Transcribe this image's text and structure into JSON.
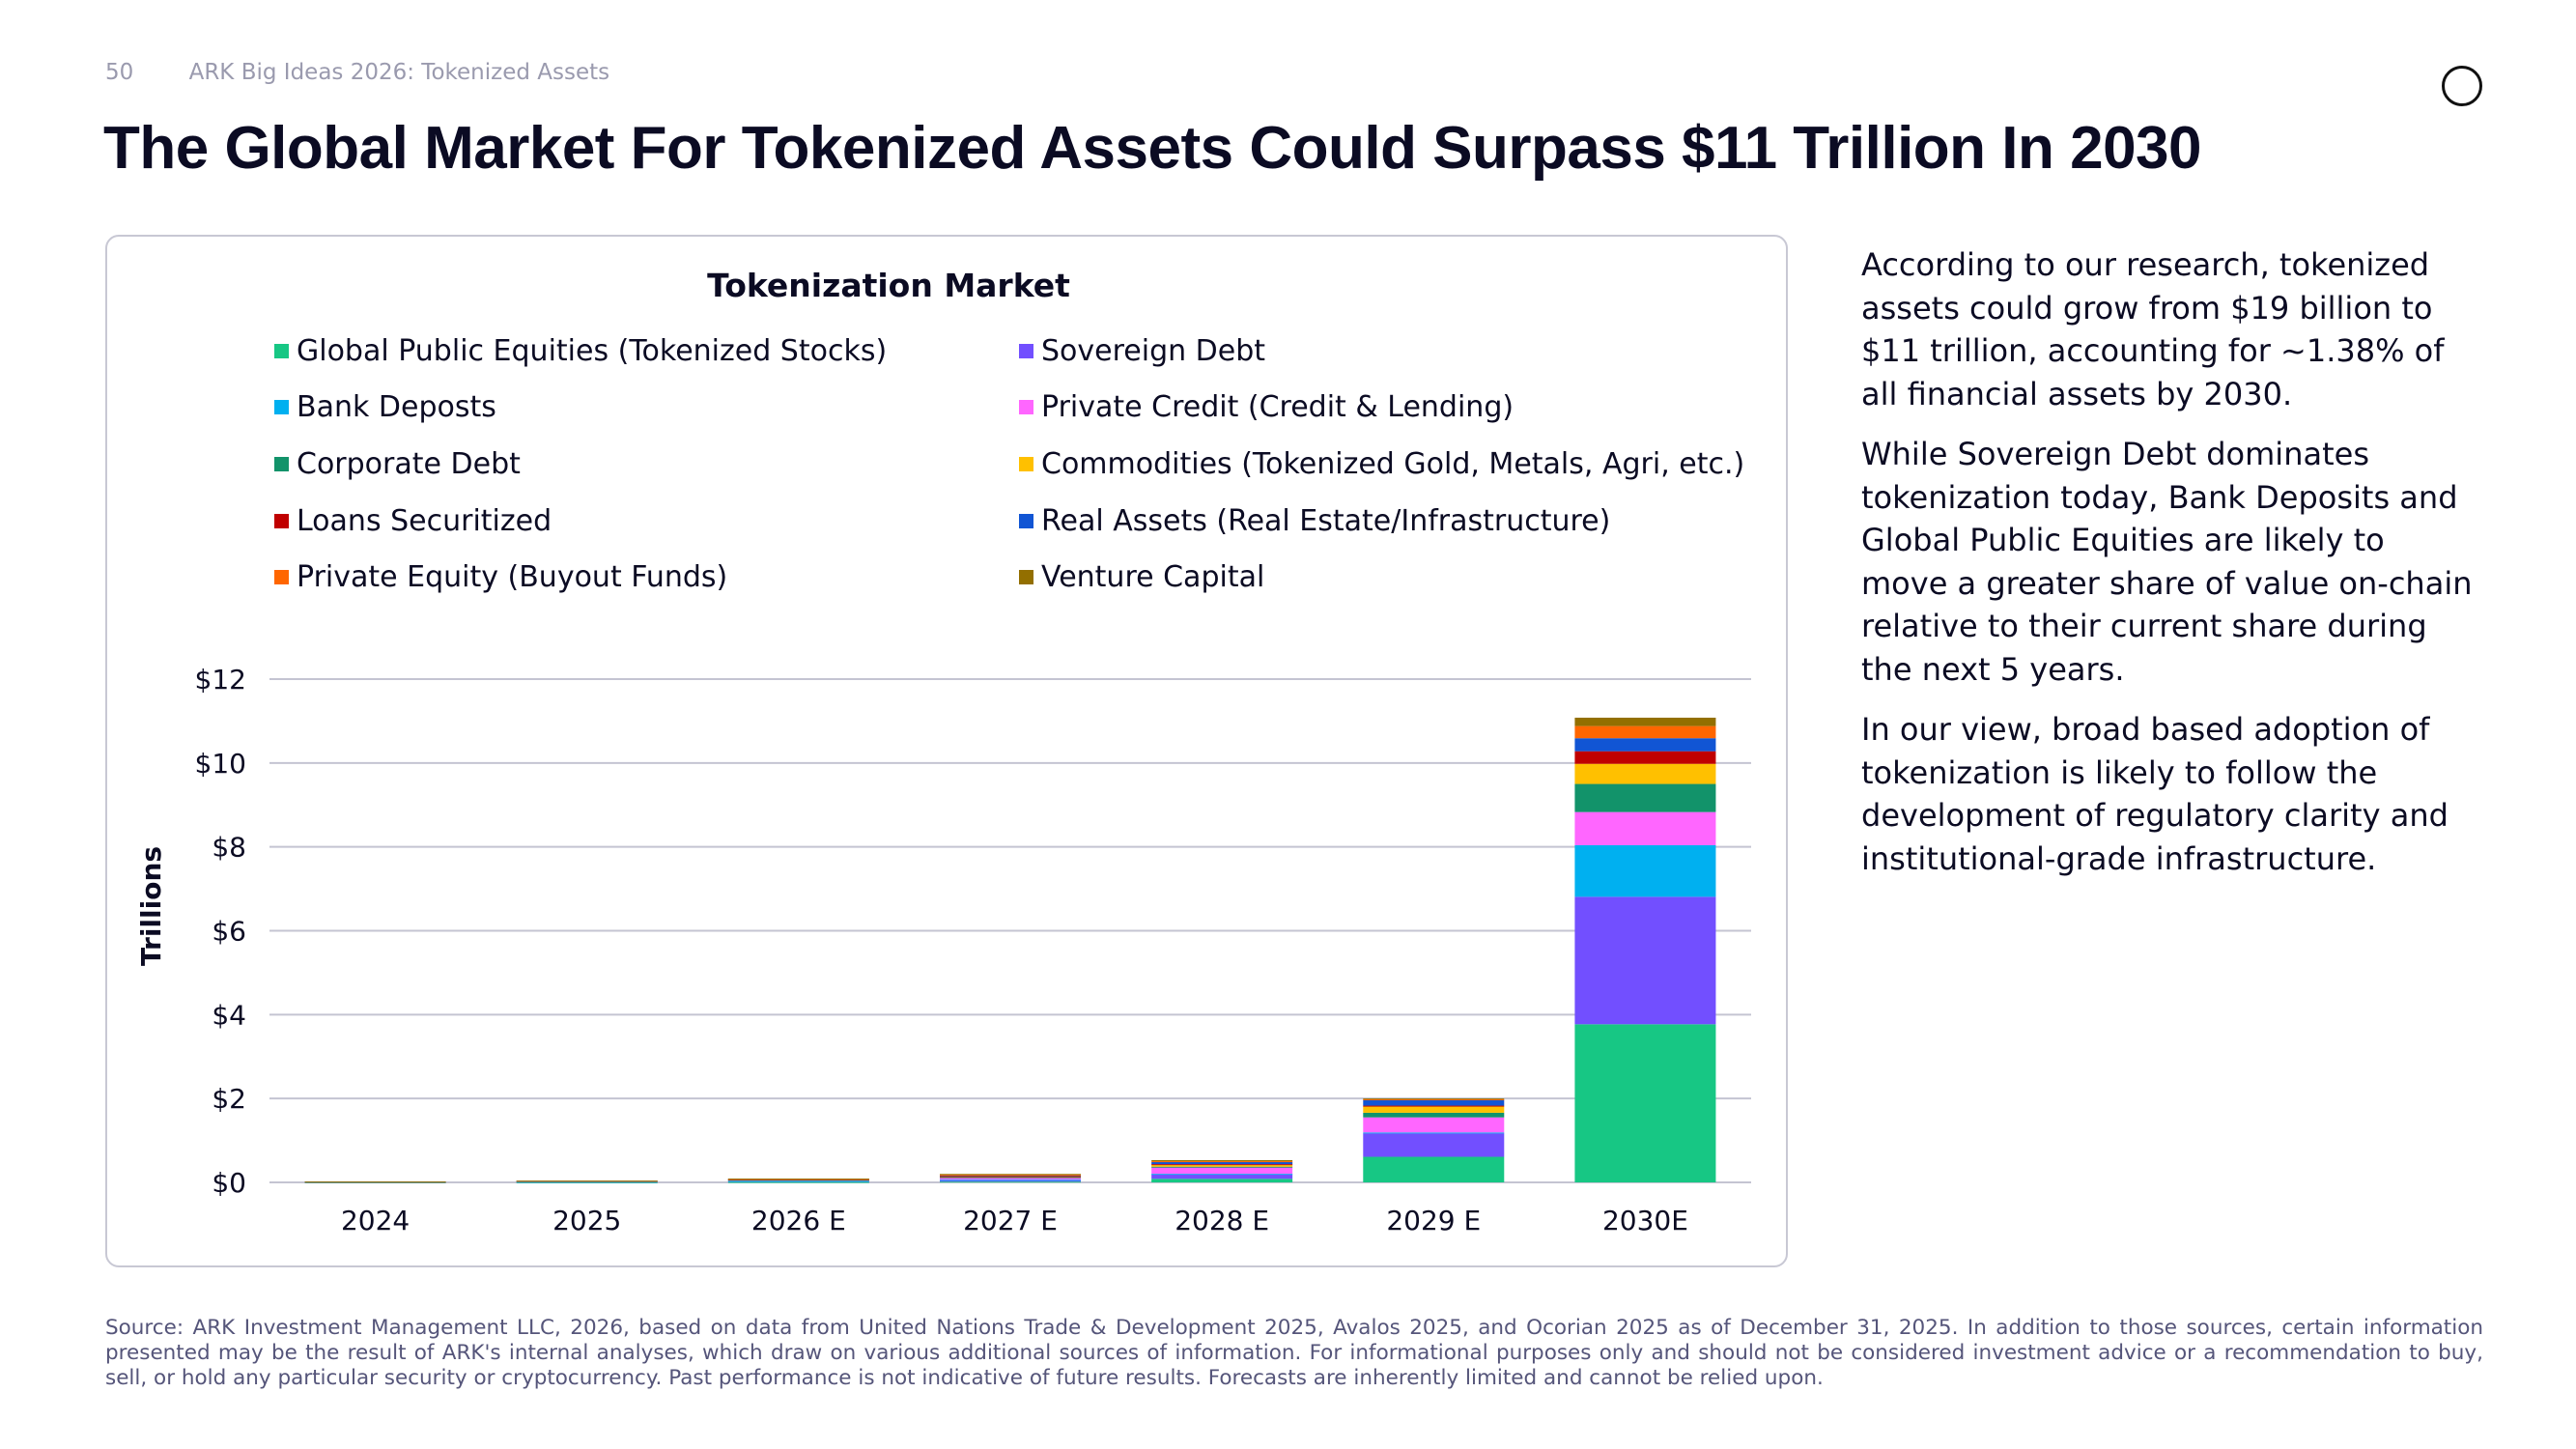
{
  "header": {
    "page_number": "50",
    "deck": "ARK Big Ideas 2026: Tokenized Assets"
  },
  "title": "The Global Market For Tokenized Assets Could Surpass $11 Trillion In 2030",
  "chart_data": {
    "type": "bar",
    "stacked": true,
    "title": "Tokenization Market",
    "ylabel": "Trillions",
    "xlabel": "",
    "ylim": [
      0,
      12
    ],
    "yticks": [
      "$0",
      "$2",
      "$4",
      "$6",
      "$8",
      "$10",
      "$12"
    ],
    "grid": true,
    "legend_position": "top",
    "categories": [
      "2024",
      "2025",
      "2026 E",
      "2027 E",
      "2028 E",
      "2029 E",
      "2030E"
    ],
    "series": [
      {
        "name": "Global Public Equities (Tokenized Stocks)",
        "color": "#17c784",
        "values": [
          0.001,
          0.002,
          0.01,
          0.02,
          0.085,
          0.61,
          3.77
        ]
      },
      {
        "name": "Sovereign Debt",
        "color": "#724fff",
        "values": [
          0.008,
          0.015,
          0.025,
          0.04,
          0.11,
          0.56,
          3.04
        ]
      },
      {
        "name": "Bank Deposts",
        "color": "#00b0f0",
        "values": [
          0.0,
          0.001,
          0.003,
          0.006,
          0.01,
          0.02,
          1.23
        ]
      },
      {
        "name": "Private Credit (Credit & Lending)",
        "color": "#ff66ff",
        "values": [
          0.006,
          0.012,
          0.02,
          0.05,
          0.15,
          0.36,
          0.79
        ]
      },
      {
        "name": "Corporate Debt",
        "color": "#12936a",
        "values": [
          0.0,
          0.001,
          0.005,
          0.01,
          0.02,
          0.11,
          0.67
        ]
      },
      {
        "name": "Commodities (Tokenized Gold, Metals, Agri, etc.)",
        "color": "#ffc000",
        "values": [
          0.002,
          0.004,
          0.008,
          0.02,
          0.05,
          0.15,
          0.48
        ]
      },
      {
        "name": "Loans Securitized",
        "color": "#c00000",
        "values": [
          0.0,
          0.0,
          0.002,
          0.005,
          0.01,
          0.02,
          0.3
        ]
      },
      {
        "name": "Real Assets (Real Estate/Infrastructure)",
        "color": "#1155d4",
        "values": [
          0.002,
          0.003,
          0.008,
          0.02,
          0.05,
          0.13,
          0.31
        ]
      },
      {
        "name": "Private Equity (Buyout Funds)",
        "color": "#ff6600",
        "values": [
          0.0,
          0.001,
          0.003,
          0.01,
          0.02,
          0.02,
          0.29
        ]
      },
      {
        "name": "Venture Capital",
        "color": "#936f00",
        "values": [
          0.001,
          0.001,
          0.006,
          0.02,
          0.025,
          0.02,
          0.2
        ]
      }
    ]
  },
  "body": [
    "According to our research, tokenized assets could grow from $19 billion to $11 trillion, accounting for ~1.38% of all financial assets by 2030.",
    "While Sovereign Debt dominates tokenization today, Bank Deposits and Global Public Equities are likely to move a greater share of value on-chain relative to their current share during the next 5 years.",
    "In our view, broad based adoption of tokenization is likely to follow the development of regulatory clarity and institutional-grade infrastructure."
  ],
  "footer": "Source: ARK Investment Management LLC, 2026, based on data from United Nations Trade & Development 2025, Avalos 2025, and Ocorian 2025 as of December 31, 2025. In addition to those sources, certain information presented may be the result of ARK's internal analyses, which draw on various additional sources of information. For informational purposes only and should not be considered investment advice or a recommendation to buy, sell, or hold any particular security or cryptocurrency. Past performance is not indicative of future results. Forecasts are inherently limited and cannot be relied upon."
}
